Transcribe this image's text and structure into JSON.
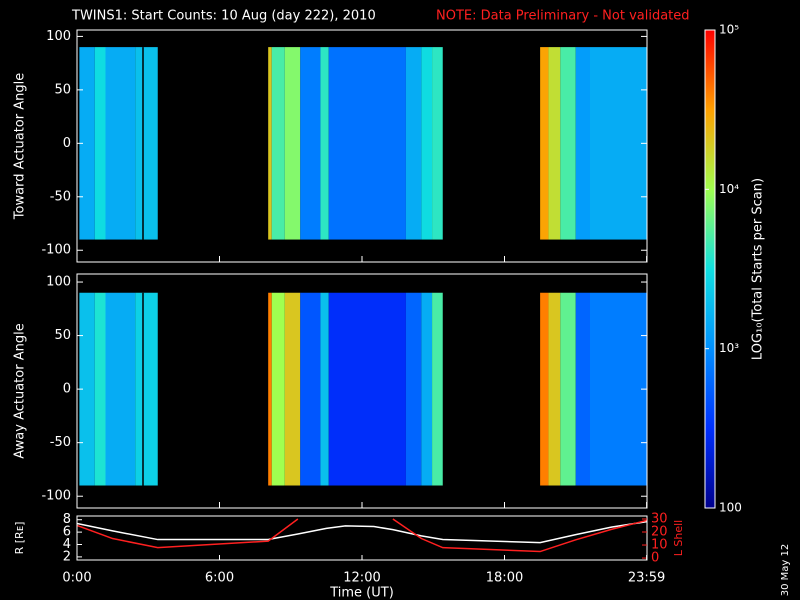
{
  "chart_data": [
    {
      "type": "heatmap",
      "title": "TWINS1: Start Counts: 10 Aug (day 222), 2010",
      "note": "NOTE: Data Preliminary - Not validated",
      "ylabel": "Toward Actuator Angle",
      "xlim": [
        0,
        24
      ],
      "ylim": [
        -111,
        106
      ],
      "yticks": [
        -100,
        -50,
        0,
        50,
        100
      ],
      "angle_range": [
        -90,
        90
      ],
      "x_edges": [
        0.1,
        0.75,
        1.2,
        2.45,
        3.4,
        8.05,
        8.2,
        8.75,
        9.4,
        10.25,
        10.6,
        13.85,
        14.5,
        14.95,
        15.4,
        19.5,
        19.85,
        20.35,
        21,
        21.6,
        24
      ],
      "values": [
        1500,
        3000,
        1500,
        2000,
        null,
        20000,
        5000,
        8000,
        800,
        4000,
        700,
        1500,
        3000,
        4000,
        null,
        30000,
        15000,
        5000,
        1200,
        1500
      ]
    },
    {
      "type": "heatmap",
      "ylabel": "Away Actuator Angle",
      "xlim": [
        0,
        24
      ],
      "ylim": [
        -111,
        107.5
      ],
      "yticks": [
        -100,
        -50,
        0,
        50,
        100
      ],
      "angle_range": [
        -90,
        90
      ],
      "x_edges": [
        0.1,
        0.75,
        1.2,
        2.45,
        3.4,
        8.05,
        8.2,
        8.75,
        9.4,
        10.25,
        10.6,
        13.85,
        14.5,
        14.95,
        15.4,
        19.5,
        19.85,
        20.35,
        21,
        21.6,
        24
      ],
      "values": [
        2000,
        3500,
        1500,
        2500,
        null,
        40000,
        10000,
        20000,
        500,
        2000,
        300,
        600,
        1500,
        5000,
        null,
        40000,
        20000,
        6000,
        600,
        800
      ]
    },
    {
      "type": "line",
      "xlabel": "Time (UT)",
      "ylabel": "R [Rᴇ]",
      "y2label": "L Shell",
      "xlim": [
        0,
        24
      ],
      "xticks": [
        {
          "value": 0,
          "label": "0:00"
        },
        {
          "value": 6,
          "label": "6:00"
        },
        {
          "value": 12,
          "label": "12:00"
        },
        {
          "value": 18,
          "label": "18:00"
        },
        {
          "value": 23.983,
          "label": "23:59"
        }
      ],
      "ylim": [
        1.5,
        8.6
      ],
      "yticks": [
        2,
        4,
        6,
        8
      ],
      "y2lim": [
        -1.5,
        32.3
      ],
      "y2ticks": [
        0,
        10,
        20,
        30
      ],
      "x": [
        0,
        1.5,
        3.4,
        8.05,
        9.3,
        10.5,
        11.3,
        12.5,
        13.3,
        14.5,
        15.4,
        19.5,
        21,
        22.5,
        24
      ],
      "series": [
        {
          "name": "R",
          "color": "#ffffff",
          "values": [
            7.4,
            6.2,
            4.8,
            4.8,
            5.7,
            6.6,
            7.0,
            6.9,
            6.4,
            5.4,
            4.8,
            4.3,
            5.6,
            6.8,
            7.7
          ]
        },
        {
          "name": "L Shell",
          "color": "#ff2020",
          "axis": "y2",
          "values": [
            25,
            15,
            8,
            13,
            30,
            null,
            null,
            null,
            30,
            15,
            8,
            5,
            14,
            22,
            29
          ]
        }
      ]
    }
  ],
  "colorbar": {
    "label": "LOG₁₀(Total Starts per Scan)",
    "scale": "log",
    "lim": [
      100,
      100000
    ],
    "ticks": [
      100,
      {
        "value": 1000,
        "label": "10³"
      },
      {
        "value": 10000,
        "label": "10⁴"
      },
      {
        "value": 100000,
        "label": "10⁵"
      }
    ],
    "colormap": [
      "#00008c",
      "#0030ff",
      "#0090ff",
      "#10e0e0",
      "#a0ff50",
      "#ffa000",
      "#ff0000"
    ]
  },
  "stamp": "30 May 12"
}
